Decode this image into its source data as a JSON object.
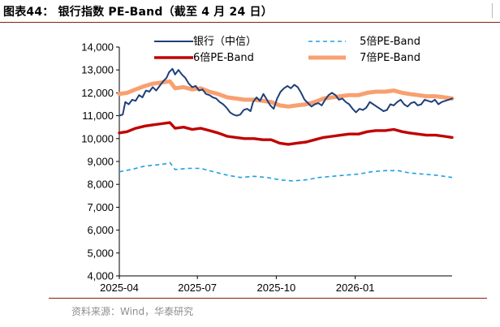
{
  "title": "图表44：  银行指数 PE-Band（截至 4 月 24 日）",
  "source": "资料来源：Wind，华泰研究",
  "chart_data": {
    "type": "line",
    "ylim": [
      4000,
      14000
    ],
    "yticks": [
      4000,
      5000,
      6000,
      7000,
      8000,
      9000,
      10000,
      11000,
      12000,
      13000,
      14000
    ],
    "ytick_labels": [
      "4,000",
      "5,000",
      "6,000",
      "7,000",
      "8,000",
      "9,000",
      "10,000",
      "11,000",
      "12,000",
      "13,000",
      "14,000"
    ],
    "xlim": [
      "2025-04-01",
      "2026-04-24"
    ],
    "xticks": [
      "2025-04-01",
      "2025-07-01",
      "2025-10-01",
      "2026-01-01"
    ],
    "xtick_labels": [
      "2025-04",
      "2025-07",
      "2025-10",
      "2026-01"
    ],
    "legend_position": "top",
    "series": [
      {
        "name": "银行（中信）",
        "color": "#1f3f7a",
        "style": "solid",
        "width": 2,
        "points": [
          [
            "2025-04-01",
            11000
          ],
          [
            "2025-04-05",
            11050
          ],
          [
            "2025-04-08",
            11600
          ],
          [
            "2025-04-12",
            11500
          ],
          [
            "2025-04-16",
            11700
          ],
          [
            "2025-04-20",
            11650
          ],
          [
            "2025-04-24",
            11900
          ],
          [
            "2025-04-28",
            11800
          ],
          [
            "2025-05-02",
            12100
          ],
          [
            "2025-05-06",
            12050
          ],
          [
            "2025-05-10",
            12250
          ],
          [
            "2025-05-14",
            12100
          ],
          [
            "2025-05-18",
            12300
          ],
          [
            "2025-05-22",
            12500
          ],
          [
            "2025-05-26",
            12650
          ],
          [
            "2025-05-29",
            12900
          ],
          [
            "2025-06-02",
            13050
          ],
          [
            "2025-06-05",
            12800
          ],
          [
            "2025-06-09",
            13000
          ],
          [
            "2025-06-13",
            12800
          ],
          [
            "2025-06-17",
            12650
          ],
          [
            "2025-06-21",
            12400
          ],
          [
            "2025-06-25",
            12250
          ],
          [
            "2025-06-29",
            12300
          ],
          [
            "2025-07-03",
            12100
          ],
          [
            "2025-07-07",
            12150
          ],
          [
            "2025-07-11",
            11950
          ],
          [
            "2025-07-15",
            11900
          ],
          [
            "2025-07-19",
            11800
          ],
          [
            "2025-07-23",
            11750
          ],
          [
            "2025-07-27",
            11600
          ],
          [
            "2025-07-31",
            11500
          ],
          [
            "2025-08-04",
            11350
          ],
          [
            "2025-08-08",
            11150
          ],
          [
            "2025-08-12",
            11050
          ],
          [
            "2025-08-16",
            11000
          ],
          [
            "2025-08-20",
            11050
          ],
          [
            "2025-08-24",
            11250
          ],
          [
            "2025-08-28",
            11300
          ],
          [
            "2025-09-01",
            11200
          ],
          [
            "2025-09-04",
            11600
          ],
          [
            "2025-09-08",
            11800
          ],
          [
            "2025-09-12",
            11650
          ],
          [
            "2025-09-16",
            11950
          ],
          [
            "2025-09-20",
            11700
          ],
          [
            "2025-09-24",
            11450
          ],
          [
            "2025-09-28",
            11300
          ],
          [
            "2025-10-02",
            11750
          ],
          [
            "2025-10-06",
            12050
          ],
          [
            "2025-10-10",
            12200
          ],
          [
            "2025-10-14",
            12300
          ],
          [
            "2025-10-18",
            12200
          ],
          [
            "2025-10-22",
            12350
          ],
          [
            "2025-10-26",
            12250
          ],
          [
            "2025-10-30",
            12000
          ],
          [
            "2025-11-03",
            11700
          ],
          [
            "2025-11-07",
            11550
          ],
          [
            "2025-11-11",
            11400
          ],
          [
            "2025-11-15",
            11500
          ],
          [
            "2025-11-19",
            11550
          ],
          [
            "2025-11-23",
            11450
          ],
          [
            "2025-11-27",
            11700
          ],
          [
            "2025-12-01",
            11900
          ],
          [
            "2025-12-05",
            12000
          ],
          [
            "2025-12-09",
            11900
          ],
          [
            "2025-12-13",
            11700
          ],
          [
            "2025-12-17",
            11750
          ],
          [
            "2025-12-21",
            11600
          ],
          [
            "2025-12-25",
            11500
          ],
          [
            "2025-12-29",
            11300
          ],
          [
            "2026-01-02",
            11150
          ],
          [
            "2026-01-06",
            11300
          ],
          [
            "2026-01-10",
            11250
          ],
          [
            "2026-01-14",
            11350
          ],
          [
            "2026-01-18",
            11600
          ],
          [
            "2026-01-22",
            11500
          ],
          [
            "2026-01-26",
            11400
          ],
          [
            "2026-01-30",
            11300
          ],
          [
            "2026-02-03",
            11200
          ],
          [
            "2026-02-07",
            11250
          ],
          [
            "2026-02-11",
            11500
          ],
          [
            "2026-02-15",
            11450
          ],
          [
            "2026-02-19",
            11600
          ],
          [
            "2026-02-23",
            11700
          ],
          [
            "2026-02-27",
            11500
          ],
          [
            "2026-03-03",
            11400
          ],
          [
            "2026-03-07",
            11550
          ],
          [
            "2026-03-11",
            11600
          ],
          [
            "2026-03-15",
            11450
          ],
          [
            "2026-03-19",
            11500
          ],
          [
            "2026-03-23",
            11700
          ],
          [
            "2026-03-27",
            11650
          ],
          [
            "2026-03-31",
            11600
          ],
          [
            "2026-04-04",
            11700
          ],
          [
            "2026-04-08",
            11500
          ],
          [
            "2026-04-12",
            11600
          ],
          [
            "2026-04-16",
            11650
          ],
          [
            "2026-04-20",
            11700
          ],
          [
            "2026-04-24",
            11750
          ]
        ]
      },
      {
        "name": "5倍PE-Band",
        "color": "#1ea0e0",
        "style": "dashed",
        "width": 1.6,
        "points": [
          [
            "2025-04-01",
            8550
          ],
          [
            "2025-04-15",
            8650
          ],
          [
            "2025-05-01",
            8800
          ],
          [
            "2025-05-15",
            8850
          ],
          [
            "2025-05-25",
            8900
          ],
          [
            "2025-05-30",
            8950
          ],
          [
            "2025-06-05",
            8650
          ],
          [
            "2025-06-20",
            8700
          ],
          [
            "2025-07-05",
            8700
          ],
          [
            "2025-07-20",
            8550
          ],
          [
            "2025-08-05",
            8400
          ],
          [
            "2025-08-20",
            8300
          ],
          [
            "2025-09-05",
            8350
          ],
          [
            "2025-09-20",
            8300
          ],
          [
            "2025-10-05",
            8200
          ],
          [
            "2025-10-20",
            8150
          ],
          [
            "2025-11-05",
            8200
          ],
          [
            "2025-11-20",
            8300
          ],
          [
            "2025-12-05",
            8350
          ],
          [
            "2025-12-20",
            8400
          ],
          [
            "2026-01-05",
            8450
          ],
          [
            "2026-01-20",
            8550
          ],
          [
            "2026-02-05",
            8600
          ],
          [
            "2026-02-20",
            8600
          ],
          [
            "2026-03-05",
            8500
          ],
          [
            "2026-03-20",
            8450
          ],
          [
            "2026-04-05",
            8400
          ],
          [
            "2026-04-15",
            8350
          ],
          [
            "2026-04-24",
            8300
          ]
        ]
      },
      {
        "name": "6倍PE-Band",
        "color": "#c00000",
        "style": "solid",
        "width": 3.4,
        "points": [
          [
            "2025-04-01",
            10250
          ],
          [
            "2025-04-10",
            10300
          ],
          [
            "2025-04-20",
            10450
          ],
          [
            "2025-05-01",
            10550
          ],
          [
            "2025-05-10",
            10600
          ],
          [
            "2025-05-20",
            10650
          ],
          [
            "2025-05-30",
            10700
          ],
          [
            "2025-06-05",
            10450
          ],
          [
            "2025-06-15",
            10500
          ],
          [
            "2025-06-25",
            10400
          ],
          [
            "2025-07-05",
            10450
          ],
          [
            "2025-07-15",
            10350
          ],
          [
            "2025-07-25",
            10250
          ],
          [
            "2025-08-05",
            10100
          ],
          [
            "2025-08-15",
            10050
          ],
          [
            "2025-08-25",
            10000
          ],
          [
            "2025-09-05",
            10000
          ],
          [
            "2025-09-15",
            9950
          ],
          [
            "2025-09-25",
            9950
          ],
          [
            "2025-10-05",
            9800
          ],
          [
            "2025-10-15",
            9750
          ],
          [
            "2025-10-25",
            9800
          ],
          [
            "2025-11-05",
            9850
          ],
          [
            "2025-11-15",
            9950
          ],
          [
            "2025-11-25",
            10050
          ],
          [
            "2025-12-05",
            10100
          ],
          [
            "2025-12-15",
            10150
          ],
          [
            "2025-12-25",
            10200
          ],
          [
            "2026-01-05",
            10200
          ],
          [
            "2026-01-15",
            10300
          ],
          [
            "2026-01-25",
            10350
          ],
          [
            "2026-02-05",
            10350
          ],
          [
            "2026-02-15",
            10400
          ],
          [
            "2026-02-25",
            10300
          ],
          [
            "2026-03-05",
            10250
          ],
          [
            "2026-03-15",
            10200
          ],
          [
            "2026-03-25",
            10150
          ],
          [
            "2026-04-05",
            10150
          ],
          [
            "2026-04-15",
            10100
          ],
          [
            "2026-04-24",
            10050
          ]
        ]
      },
      {
        "name": "7倍PE-Band",
        "color": "#f8a070",
        "style": "solid",
        "width": 5,
        "points": [
          [
            "2025-04-01",
            11950
          ],
          [
            "2025-04-10",
            12000
          ],
          [
            "2025-04-20",
            12150
          ],
          [
            "2025-05-01",
            12300
          ],
          [
            "2025-05-10",
            12400
          ],
          [
            "2025-05-20",
            12450
          ],
          [
            "2025-05-30",
            12500
          ],
          [
            "2025-06-05",
            12200
          ],
          [
            "2025-06-15",
            12250
          ],
          [
            "2025-06-25",
            12150
          ],
          [
            "2025-07-05",
            12200
          ],
          [
            "2025-07-15",
            12050
          ],
          [
            "2025-07-25",
            11950
          ],
          [
            "2025-08-05",
            11800
          ],
          [
            "2025-08-15",
            11750
          ],
          [
            "2025-08-25",
            11700
          ],
          [
            "2025-09-05",
            11700
          ],
          [
            "2025-09-15",
            11650
          ],
          [
            "2025-09-25",
            11600
          ],
          [
            "2025-10-05",
            11450
          ],
          [
            "2025-10-15",
            11400
          ],
          [
            "2025-10-25",
            11450
          ],
          [
            "2025-11-05",
            11500
          ],
          [
            "2025-11-15",
            11600
          ],
          [
            "2025-11-25",
            11750
          ],
          [
            "2025-12-05",
            11800
          ],
          [
            "2025-12-15",
            11850
          ],
          [
            "2025-12-25",
            11900
          ],
          [
            "2026-01-05",
            11900
          ],
          [
            "2026-01-15",
            12000
          ],
          [
            "2026-01-25",
            12050
          ],
          [
            "2026-02-05",
            12050
          ],
          [
            "2026-02-15",
            12100
          ],
          [
            "2026-02-25",
            12000
          ],
          [
            "2026-03-05",
            11950
          ],
          [
            "2026-03-15",
            11900
          ],
          [
            "2026-03-25",
            11850
          ],
          [
            "2026-04-05",
            11850
          ],
          [
            "2026-04-15",
            11800
          ],
          [
            "2026-04-24",
            11750
          ]
        ]
      }
    ]
  }
}
